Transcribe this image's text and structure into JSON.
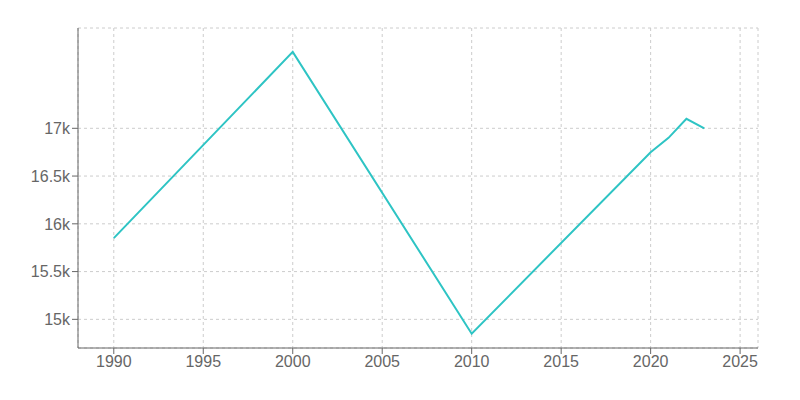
{
  "chart_data": {
    "type": "line",
    "x": [
      1990,
      2000,
      2010,
      2020,
      2021,
      2022,
      2023
    ],
    "values": [
      15850,
      17800,
      14850,
      16750,
      16900,
      17100,
      17000
    ],
    "color": "#2EC4C4",
    "xlim": [
      1988,
      2026
    ],
    "ylim": [
      14700,
      18050
    ],
    "xticks": [
      1990,
      1995,
      2000,
      2005,
      2010,
      2015,
      2020,
      2025
    ],
    "yticks": [
      {
        "value": 15000,
        "label": "15k"
      },
      {
        "value": 15500,
        "label": "15.5k"
      },
      {
        "value": 16000,
        "label": "16k"
      },
      {
        "value": 16500,
        "label": "16.5k"
      },
      {
        "value": 17000,
        "label": "17k"
      }
    ],
    "grid": true
  }
}
